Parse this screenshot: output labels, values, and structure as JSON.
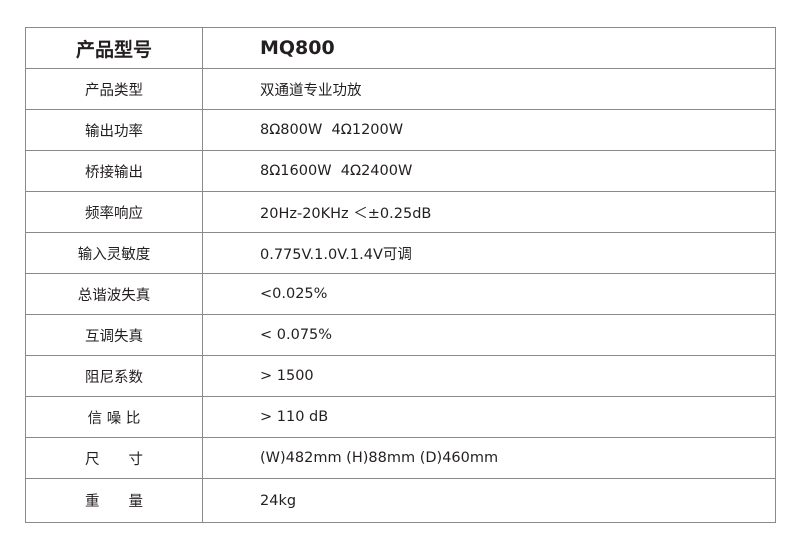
{
  "spec_table": {
    "header": {
      "label": "产品型号",
      "value": "MQ800"
    },
    "rows": [
      {
        "label": "产品类型",
        "value": "双通道专业功放"
      },
      {
        "label": "输出功率",
        "value": "8Ω800W  4Ω1200W"
      },
      {
        "label": "桥接输出",
        "value": "8Ω1600W  4Ω2400W"
      },
      {
        "label": "频率响应",
        "value": "20Hz-20KHz ＜±0.25dB"
      },
      {
        "label": "输入灵敏度",
        "value": "0.775V.1.0V.1.4V可调"
      },
      {
        "label": "总谐波失真",
        "value": "<0.025%"
      },
      {
        "label": "互调失真",
        "value": "< 0.075%"
      },
      {
        "label": "阻尼系数",
        "value": "> 1500"
      },
      {
        "label": "信 噪 比",
        "value": "> 110 dB"
      },
      {
        "label": "尺　　寸",
        "value": "(W)482mm (H)88mm (D)460mm"
      },
      {
        "label": "重　　量",
        "value": "24kg"
      }
    ]
  }
}
